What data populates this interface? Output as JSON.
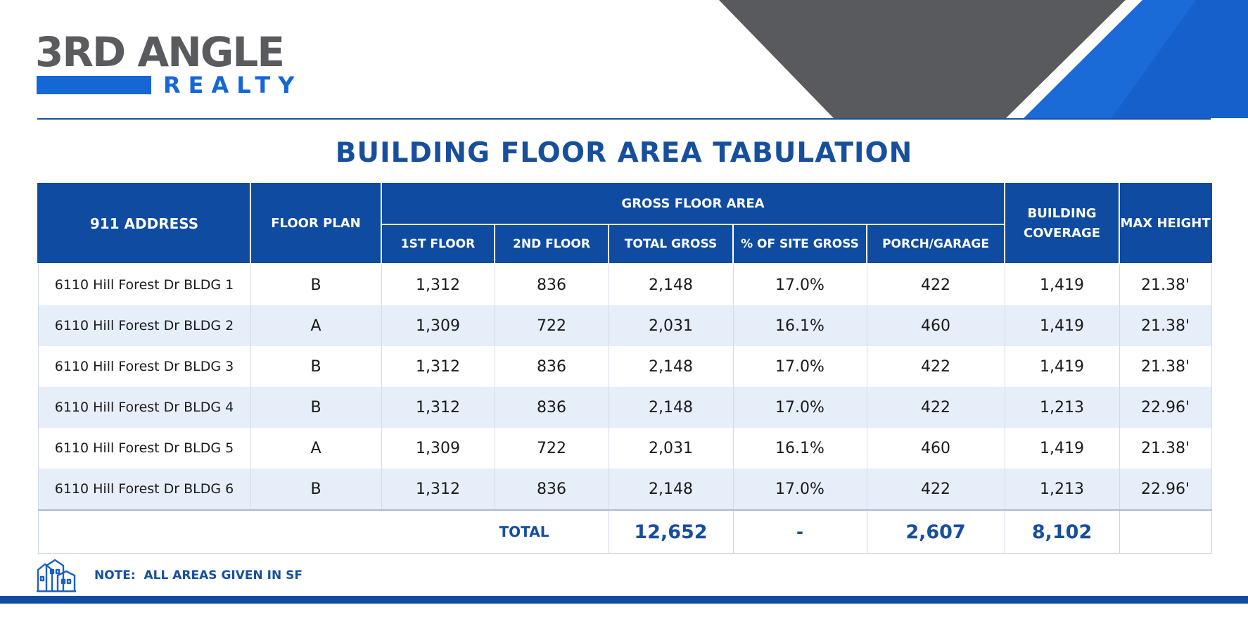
{
  "brand": {
    "logo_main": "3RD ANGLE",
    "logo_sub": "REALTY"
  },
  "title": "BUILDING FLOOR AREA TABULATION",
  "table": {
    "headers": {
      "address": "911 ADDRESS",
      "floor_plan": "FLOOR PLAN",
      "gross_floor_area": "GROSS FLOOR AREA",
      "first_floor": "1ST FLOOR",
      "second_floor": "2ND FLOOR",
      "total_gross": "TOTAL GROSS",
      "pct_site_gross": "% OF SITE GROSS",
      "porch_garage": "PORCH/GARAGE",
      "building_coverage": "BUILDING COVERAGE",
      "max_height": "MAX HEIGHT"
    },
    "rows": [
      [
        "6110 Hill Forest Dr BLDG 1",
        "B",
        "1,312",
        "836",
        "2,148",
        "17.0%",
        "422",
        "1,419",
        "21.38'"
      ],
      [
        "6110 Hill Forest Dr BLDG 2",
        "A",
        "1,309",
        "722",
        "2,031",
        "16.1%",
        "460",
        "1,419",
        "21.38'"
      ],
      [
        "6110 Hill Forest Dr BLDG 3",
        "B",
        "1,312",
        "836",
        "2,148",
        "17.0%",
        "422",
        "1,419",
        "21.38'"
      ],
      [
        "6110 Hill Forest Dr BLDG 4",
        "B",
        "1,312",
        "836",
        "2,148",
        "17.0%",
        "422",
        "1,213",
        "22.96'"
      ],
      [
        "6110 Hill Forest Dr BLDG 5",
        "A",
        "1,309",
        "722",
        "2,031",
        "16.1%",
        "460",
        "1,419",
        "21.38'"
      ],
      [
        "6110 Hill Forest Dr BLDG 6",
        "B",
        "1,312",
        "836",
        "2,148",
        "17.0%",
        "422",
        "1,213",
        "22.96'"
      ]
    ],
    "totals": {
      "label": "TOTAL",
      "total_gross": "12,652",
      "pct_site_gross": "-",
      "porch_garage": "2,607",
      "building_coverage": "8,102"
    }
  },
  "note": "NOTE:  ALL AREAS GIVEN IN SF",
  "colors": {
    "primary_blue": "#0e4ba1",
    "accent_blue": "#1667d6",
    "title_blue": "#174f9d",
    "logo_gray": "#5a5b5f",
    "header_gray": "#595a5e",
    "row_alt": "#e6eefa"
  },
  "icons": {
    "note_icon": "buildings-icon"
  }
}
